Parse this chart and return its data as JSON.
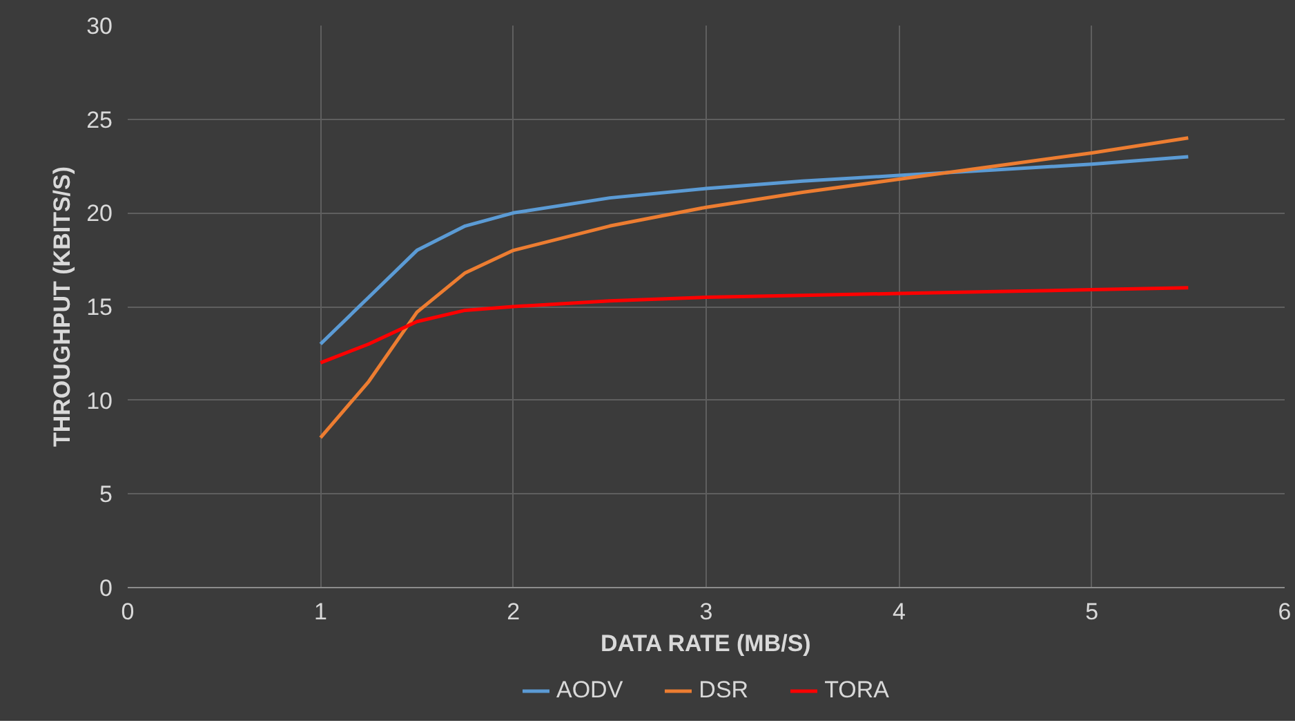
{
  "chart_data": {
    "type": "line",
    "xlabel": "DATA RATE (MB/S)",
    "ylabel": "THROUGHPUT (KBITS/S)",
    "x": [
      1,
      1.25,
      1.5,
      1.75,
      2,
      2.5,
      3,
      3.5,
      4,
      4.5,
      5,
      5.5
    ],
    "series": [
      {
        "name": "AODV",
        "color": "#5b9bd5",
        "values": [
          13,
          15.5,
          18,
          19.3,
          20,
          20.8,
          21.3,
          21.7,
          22,
          22.3,
          22.6,
          23
        ]
      },
      {
        "name": "DSR",
        "color": "#ed7d31",
        "values": [
          8,
          11,
          14.7,
          16.8,
          18,
          19.3,
          20.3,
          21.1,
          21.8,
          22.5,
          23.2,
          24
        ]
      },
      {
        "name": "TORA",
        "color": "#ff0000",
        "values": [
          12,
          13,
          14.2,
          14.8,
          15,
          15.3,
          15.5,
          15.6,
          15.7,
          15.8,
          15.9,
          16
        ]
      }
    ],
    "xlim": [
      0,
      6
    ],
    "xticks": [
      0,
      1,
      2,
      3,
      4,
      5,
      6
    ],
    "ylim": [
      0,
      30
    ],
    "yticks": [
      0,
      5,
      10,
      15,
      20,
      25,
      30
    ],
    "grid": true,
    "legend": "bottom",
    "marker": "none",
    "line_style": "solid"
  }
}
